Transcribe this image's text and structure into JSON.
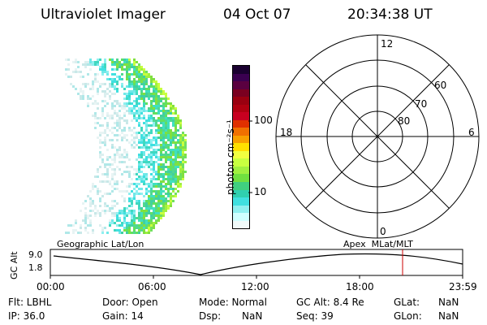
{
  "header": {
    "instrument": "Ultraviolet Imager",
    "date": "04 Oct 07",
    "time": "20:34:38 UT"
  },
  "colorbar": {
    "label": "photon cm⁻²s⁻¹",
    "ticks": [
      "100",
      "10"
    ],
    "colors": [
      "#1a0030",
      "#3a0050",
      "#5a0040",
      "#7a0020",
      "#9a0010",
      "#b00010",
      "#c80020",
      "#e03000",
      "#f07000",
      "#f8a000",
      "#ffe000",
      "#f0ff40",
      "#c8ff40",
      "#a0f040",
      "#70e040",
      "#40d080",
      "#30d0b0",
      "#40e0e0",
      "#90f0f0",
      "#d0ffff",
      "#f0fafa"
    ]
  },
  "polar": {
    "mlt_labels": {
      "top": "12",
      "left": "18",
      "right": "6",
      "bottom": "0"
    },
    "lat_labels": [
      "60",
      "70",
      "80"
    ]
  },
  "timeline": {
    "title_left": "Geographic Lat/Lon",
    "title_right": "Apex  MLat/MLT",
    "ylabel": "GC Alt",
    "ytop": "9.0",
    "ybottom": "1.8",
    "xticks": [
      "00:00",
      "06:00",
      "12:00",
      "18:00",
      "23:59"
    ]
  },
  "status": {
    "row1": [
      {
        "label": "Flt: LBHL"
      },
      {
        "label": "Door: Open"
      },
      {
        "label": "Mode: Normal"
      },
      {
        "label": "GC Alt: 8.4 Re"
      },
      {
        "label": "GLat:",
        "value": "NaN"
      }
    ],
    "row2": [
      {
        "label": "IP: 36.0"
      },
      {
        "label": "Gain: 14"
      },
      {
        "label": "Dsp:",
        "value": "NaN"
      },
      {
        "label": "Seq: 39"
      },
      {
        "label": "GLon:",
        "value": "NaN"
      }
    ]
  }
}
